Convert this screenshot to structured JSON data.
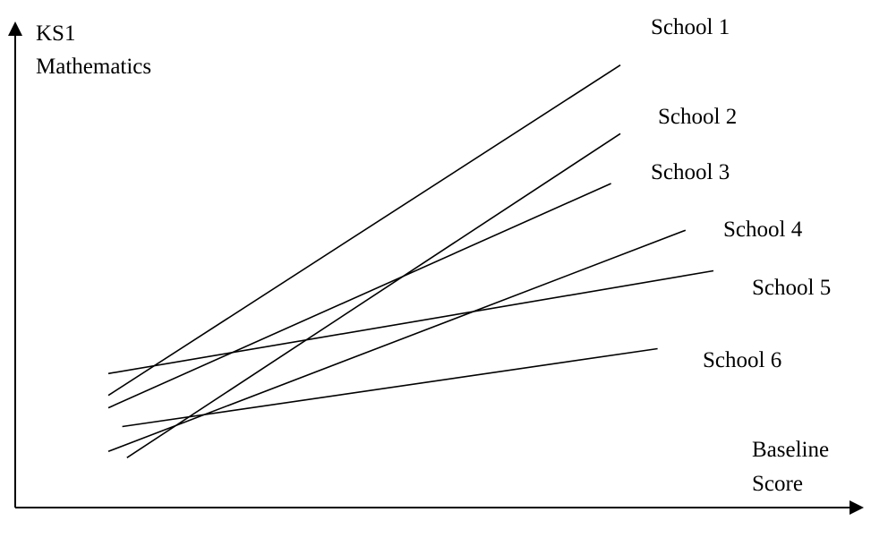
{
  "chart_data": {
    "type": "line",
    "ylabel_lines": [
      "KS1",
      "Mathematics"
    ],
    "xlabel_lines": [
      "Baseline",
      "Score"
    ],
    "series": [
      {
        "name": "School 1",
        "x": [
          1.0,
          6.5
        ],
        "y": [
          1.2,
          6.5
        ]
      },
      {
        "name": "School 2",
        "x": [
          1.2,
          6.5
        ],
        "y": [
          0.2,
          5.4
        ]
      },
      {
        "name": "School 3",
        "x": [
          1.0,
          6.4
        ],
        "y": [
          1.0,
          4.6
        ]
      },
      {
        "name": "School 4",
        "x": [
          1.0,
          7.2
        ],
        "y": [
          0.3,
          3.85
        ]
      },
      {
        "name": "School 5",
        "x": [
          1.0,
          7.5
        ],
        "y": [
          1.55,
          3.2
        ]
      },
      {
        "name": "School 6",
        "x": [
          1.15,
          6.9
        ],
        "y": [
          0.7,
          1.95
        ]
      }
    ],
    "xlim": [
      0,
      9
    ],
    "ylim": [
      -0.6,
      7.2
    ],
    "grid": false
  }
}
